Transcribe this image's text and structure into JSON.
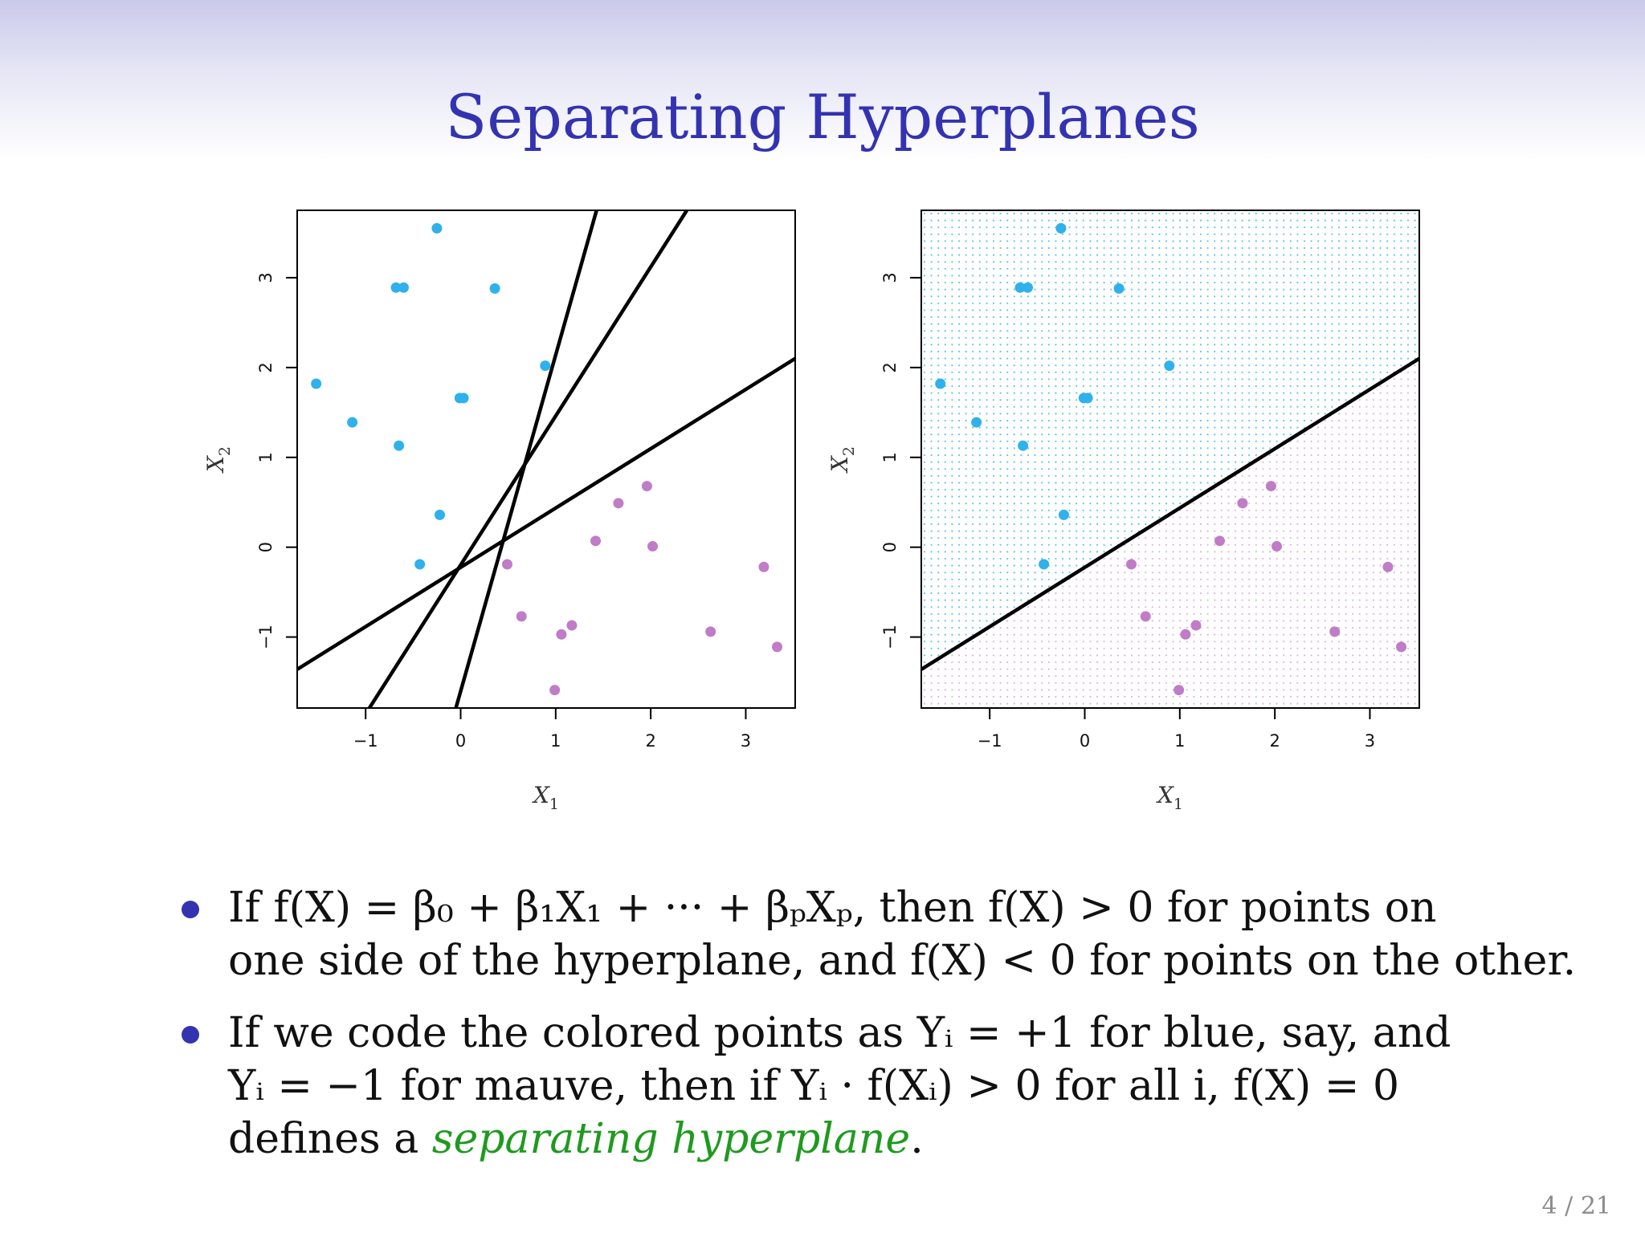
{
  "slide": {
    "title": "Separating Hyperplanes",
    "page_number": "4 / 21",
    "bullets": [
      {
        "line1_text": "If f(X) = β₀ + β₁X₁ + ··· + βₚXₚ, then f(X) > 0 for points on",
        "line2_text": "one side of the hyperplane, and f(X) < 0 for points on the other."
      },
      {
        "line1_text": "If we code the colored points as Yᵢ = +1 for blue, say, and",
        "line2_text": "Yᵢ = −1 for mauve, then if Yᵢ · f(Xᵢ) > 0 for all i, f(X) = 0",
        "line3_prefix": "defines a ",
        "line3_term": "separating hyperplane",
        "line3_suffix": "."
      }
    ]
  },
  "chart_data": [
    {
      "type": "scatter",
      "xlabel": "X1",
      "ylabel": "X2",
      "xlim": [
        -1.72,
        3.52
      ],
      "ylim": [
        -1.79,
        3.75
      ],
      "xticks": [
        -1,
        0,
        1,
        2,
        3
      ],
      "yticks": [
        -1,
        0,
        1,
        2,
        3
      ],
      "x_tick_labels": [
        "−1",
        "0",
        "1",
        "2",
        "3"
      ],
      "y_tick_labels": [
        "−1",
        "0",
        "1",
        "2",
        "3"
      ],
      "background_grid": "none",
      "series": [
        {
          "color": "#2fb1ec",
          "points": [
            [
              -0.25,
              3.55
            ],
            [
              -0.68,
              2.89
            ],
            [
              -0.6,
              2.89
            ],
            [
              0.36,
              2.88
            ],
            [
              0.89,
              2.02
            ],
            [
              -0.01,
              1.66
            ],
            [
              0.03,
              1.66
            ],
            [
              -1.52,
              1.82
            ],
            [
              -1.14,
              1.39
            ],
            [
              -0.65,
              1.13
            ],
            [
              -0.22,
              0.36
            ],
            [
              -0.43,
              -0.19
            ]
          ]
        },
        {
          "color": "#c07cc6",
          "points": [
            [
              1.96,
              0.68
            ],
            [
              1.66,
              0.49
            ],
            [
              1.42,
              0.07
            ],
            [
              2.02,
              0.01
            ],
            [
              0.49,
              -0.19
            ],
            [
              3.19,
              -0.22
            ],
            [
              0.64,
              -0.77
            ],
            [
              1.06,
              -0.97
            ],
            [
              1.17,
              -0.87
            ],
            [
              2.63,
              -0.94
            ],
            [
              3.33,
              -1.11
            ],
            [
              0.99,
              -1.59
            ]
          ]
        }
      ],
      "lines": [
        {
          "x1": -0.96,
          "y1": -1.79,
          "x2": 2.38,
          "y2": 3.75
        },
        {
          "x1": -0.05,
          "y1": -1.79,
          "x2": 1.43,
          "y2": 3.75
        },
        {
          "x1": -1.72,
          "y1": -1.36,
          "x2": 3.52,
          "y2": 2.1
        }
      ]
    },
    {
      "type": "scatter",
      "xlabel": "X1",
      "ylabel": "X2",
      "xlim": [
        -1.72,
        3.52
      ],
      "ylim": [
        -1.79,
        3.75
      ],
      "xticks": [
        -1,
        0,
        1,
        2,
        3
      ],
      "yticks": [
        -1,
        0,
        1,
        2,
        3
      ],
      "x_tick_labels": [
        "−1",
        "0",
        "1",
        "2",
        "3"
      ],
      "y_tick_labels": [
        "−1",
        "0",
        "1",
        "2",
        "3"
      ],
      "background_grid": "dots colored by side of line",
      "series": [
        {
          "color": "#2fb1ec",
          "points": [
            [
              -0.25,
              3.55
            ],
            [
              -0.68,
              2.89
            ],
            [
              -0.6,
              2.89
            ],
            [
              0.36,
              2.88
            ],
            [
              0.89,
              2.02
            ],
            [
              -0.01,
              1.66
            ],
            [
              0.03,
              1.66
            ],
            [
              -1.52,
              1.82
            ],
            [
              -1.14,
              1.39
            ],
            [
              -0.65,
              1.13
            ],
            [
              -0.22,
              0.36
            ],
            [
              -0.43,
              -0.19
            ]
          ]
        },
        {
          "color": "#c07cc6",
          "points": [
            [
              1.96,
              0.68
            ],
            [
              1.66,
              0.49
            ],
            [
              1.42,
              0.07
            ],
            [
              2.02,
              0.01
            ],
            [
              0.49,
              -0.19
            ],
            [
              3.19,
              -0.22
            ],
            [
              0.64,
              -0.77
            ],
            [
              1.06,
              -0.97
            ],
            [
              1.17,
              -0.87
            ],
            [
              2.63,
              -0.94
            ],
            [
              3.33,
              -1.11
            ],
            [
              0.99,
              -1.59
            ]
          ]
        }
      ],
      "lines": [
        {
          "x1": -1.72,
          "y1": -1.36,
          "x2": 3.52,
          "y2": 2.1
        }
      ]
    }
  ]
}
